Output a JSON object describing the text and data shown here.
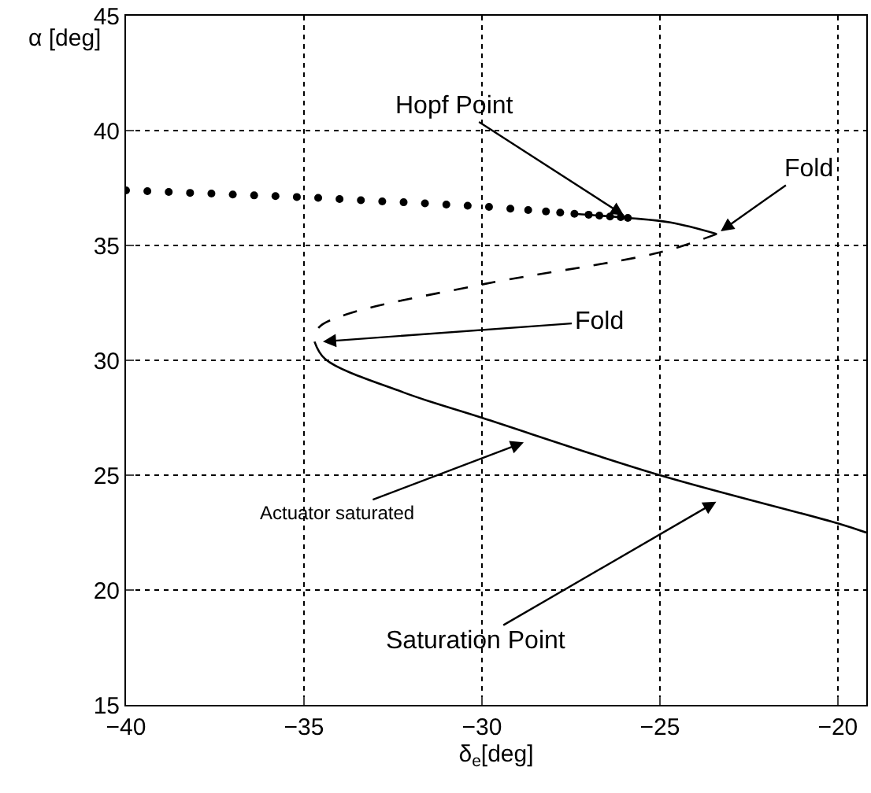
{
  "chart_data": {
    "type": "line",
    "xlabel": "δ$_{e}$[deg]",
    "ylabel": "α [deg]",
    "xlim": [
      -40,
      -19.2
    ],
    "ylim": [
      15,
      45
    ],
    "xticks": [
      -40,
      -35,
      -30,
      -25,
      -20
    ],
    "yticks": [
      15,
      20,
      25,
      30,
      35,
      40,
      45
    ],
    "grid": true,
    "series": [
      {
        "type": "scatter",
        "marker": "circle",
        "color": "#000000",
        "x": [
          -40,
          -39.4,
          -38.8,
          -38.2,
          -37.6,
          -37,
          -36.4,
          -35.8,
          -35.2,
          -34.6,
          -34,
          -33.4,
          -32.8,
          -32.2,
          -31.6,
          -31,
          -30.4,
          -29.8,
          -29.2,
          -28.7,
          -28.2,
          -27.8,
          -27.4,
          -27,
          -26.7,
          -26.4,
          -26.1,
          -25.9
        ],
        "values": [
          37.4,
          37.36,
          37.33,
          37.29,
          37.26,
          37.22,
          37.18,
          37.15,
          37.11,
          37.07,
          37.02,
          36.97,
          36.92,
          36.88,
          36.83,
          36.78,
          36.73,
          36.68,
          36.6,
          36.54,
          36.48,
          36.43,
          36.38,
          36.34,
          36.3,
          36.26,
          36.23,
          36.2
        ]
      },
      {
        "line_style": "solid",
        "color": "#000000",
        "x": [
          -27.4,
          -25.9,
          -24.7,
          -23.4
        ],
        "values": [
          36.38,
          36.2,
          36.0,
          35.5
        ]
      },
      {
        "line_style": "dashed",
        "color": "#000000",
        "x": [
          -23.4,
          -25.0,
          -30.0,
          -33.8,
          -34.6,
          -34.7
        ],
        "values": [
          35.5,
          34.7,
          33.3,
          32.0,
          31.4,
          30.8
        ]
      },
      {
        "line_style": "solid",
        "color": "#000000",
        "x": [
          -34.7,
          -34.4,
          -32.2,
          -30.0,
          -25.0,
          -20.0,
          -19.2
        ],
        "values": [
          30.8,
          30.05,
          28.6,
          27.5,
          25.0,
          22.9,
          22.5
        ]
      }
    ],
    "annotations": [
      {
        "text": "Hopf Point",
        "x": -25.9,
        "y": 36.2
      },
      {
        "text": "Fold",
        "x": -23.4,
        "y": 35.5
      },
      {
        "text": "Fold",
        "x": -34.6,
        "y": 30.8
      },
      {
        "text": "Actuator saturated",
        "x": -28.7,
        "y": 26.5
      },
      {
        "text": "Saturation Point",
        "x": -23.3,
        "y": 23.95
      }
    ]
  }
}
